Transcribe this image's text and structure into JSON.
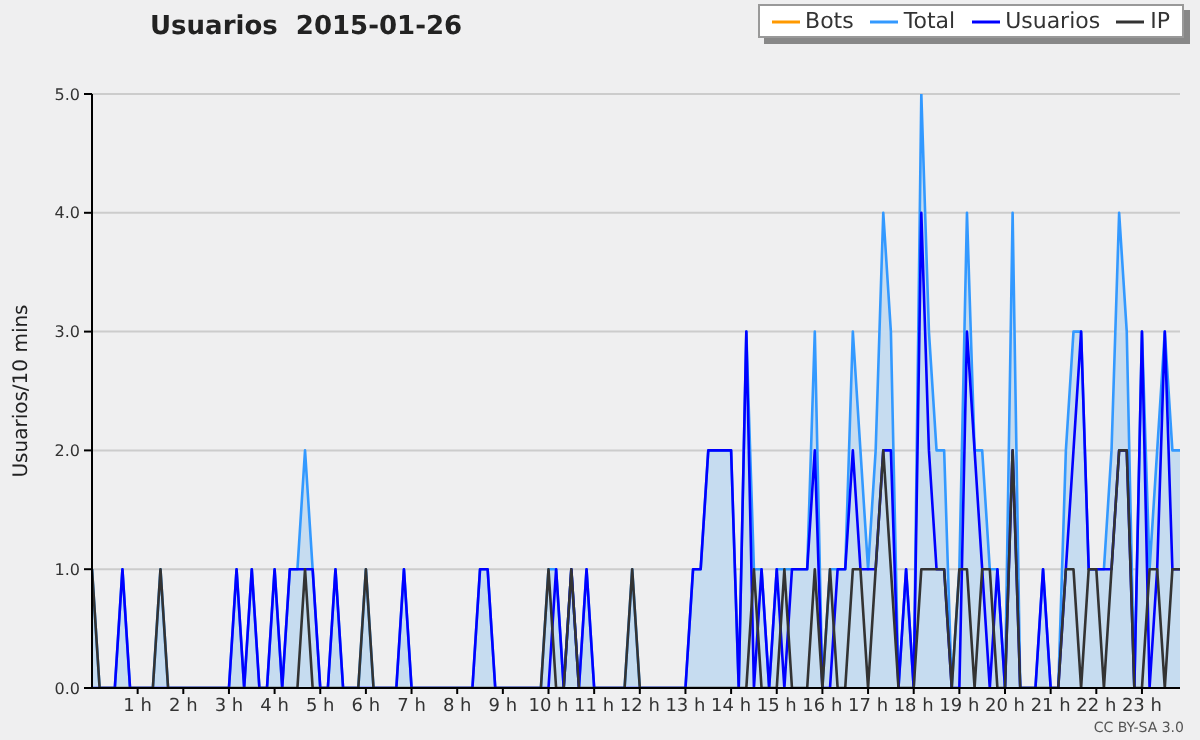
{
  "chart_data": {
    "type": "line",
    "title": "Usuarios  2015-01-26",
    "ylabel": "Usuarios/10 mins",
    "annotations": [
      "CC BY-SA 3.0"
    ],
    "x": [
      "2015-01-26T00:00",
      "2015-01-26T00:10",
      "2015-01-26T00:20",
      "2015-01-26T00:30",
      "2015-01-26T00:40",
      "2015-01-26T00:50",
      "2015-01-26T01:00",
      "2015-01-26T01:10",
      "2015-01-26T01:20",
      "2015-01-26T01:30",
      "2015-01-26T01:40",
      "2015-01-26T01:50",
      "2015-01-26T02:00",
      "2015-01-26T02:10",
      "2015-01-26T02:20",
      "2015-01-26T02:30",
      "2015-01-26T02:40",
      "2015-01-26T02:50",
      "2015-01-26T03:00",
      "2015-01-26T03:10",
      "2015-01-26T03:20",
      "2015-01-26T03:30",
      "2015-01-26T03:40",
      "2015-01-26T03:50",
      "2015-01-26T04:00",
      "2015-01-26T04:10",
      "2015-01-26T04:20",
      "2015-01-26T04:30",
      "2015-01-26T04:40",
      "2015-01-26T04:50",
      "2015-01-26T05:00",
      "2015-01-26T05:10",
      "2015-01-26T05:20",
      "2015-01-26T05:30",
      "2015-01-26T05:40",
      "2015-01-26T05:50",
      "2015-01-26T06:00",
      "2015-01-26T06:10",
      "2015-01-26T06:20",
      "2015-01-26T06:30",
      "2015-01-26T06:40",
      "2015-01-26T06:50",
      "2015-01-26T07:00",
      "2015-01-26T07:10",
      "2015-01-26T07:20",
      "2015-01-26T07:30",
      "2015-01-26T07:40",
      "2015-01-26T07:50",
      "2015-01-26T08:00",
      "2015-01-26T08:10",
      "2015-01-26T08:20",
      "2015-01-26T08:30",
      "2015-01-26T08:40",
      "2015-01-26T08:50",
      "2015-01-26T09:00",
      "2015-01-26T09:10",
      "2015-01-26T09:20",
      "2015-01-26T09:30",
      "2015-01-26T09:40",
      "2015-01-26T09:50",
      "2015-01-26T10:00",
      "2015-01-26T10:10",
      "2015-01-26T10:20",
      "2015-01-26T10:30",
      "2015-01-26T10:40",
      "2015-01-26T10:50",
      "2015-01-26T11:00",
      "2015-01-26T11:10",
      "2015-01-26T11:20",
      "2015-01-26T11:30",
      "2015-01-26T11:40",
      "2015-01-26T11:50",
      "2015-01-26T12:00",
      "2015-01-26T12:10",
      "2015-01-26T12:20",
      "2015-01-26T12:30",
      "2015-01-26T12:40",
      "2015-01-26T12:50",
      "2015-01-26T13:00",
      "2015-01-26T13:10",
      "2015-01-26T13:20",
      "2015-01-26T13:30",
      "2015-01-26T13:40",
      "2015-01-26T13:50",
      "2015-01-26T14:00",
      "2015-01-26T14:10",
      "2015-01-26T14:20",
      "2015-01-26T14:30",
      "2015-01-26T14:40",
      "2015-01-26T14:50",
      "2015-01-26T15:00",
      "2015-01-26T15:10",
      "2015-01-26T15:20",
      "2015-01-26T15:30",
      "2015-01-26T15:40",
      "2015-01-26T15:50",
      "2015-01-26T16:00",
      "2015-01-26T16:10",
      "2015-01-26T16:20",
      "2015-01-26T16:30",
      "2015-01-26T16:40",
      "2015-01-26T16:50",
      "2015-01-26T17:00",
      "2015-01-26T17:10",
      "2015-01-26T17:20",
      "2015-01-26T17:30",
      "2015-01-26T17:40",
      "2015-01-26T17:50",
      "2015-01-26T18:00",
      "2015-01-26T18:10",
      "2015-01-26T18:20",
      "2015-01-26T18:30",
      "2015-01-26T18:40",
      "2015-01-26T18:50",
      "2015-01-26T19:00",
      "2015-01-26T19:10",
      "2015-01-26T19:20",
      "2015-01-26T19:30",
      "2015-01-26T19:40",
      "2015-01-26T19:50",
      "2015-01-26T20:00",
      "2015-01-26T20:10",
      "2015-01-26T20:20",
      "2015-01-26T20:30",
      "2015-01-26T20:40",
      "2015-01-26T20:50",
      "2015-01-26T21:00",
      "2015-01-26T21:10",
      "2015-01-26T21:20",
      "2015-01-26T21:30",
      "2015-01-26T21:40",
      "2015-01-26T21:50",
      "2015-01-26T22:00",
      "2015-01-26T22:10",
      "2015-01-26T22:20",
      "2015-01-26T22:30",
      "2015-01-26T22:40",
      "2015-01-26T22:50",
      "2015-01-26T23:00",
      "2015-01-26T23:10",
      "2015-01-26T23:20",
      "2015-01-26T23:30",
      "2015-01-26T23:40",
      "2015-01-26T23:50"
    ],
    "series": [
      {
        "name": "Bots",
        "color": "#ff9900",
        "values": [
          null,
          null,
          null,
          null,
          null,
          null,
          null,
          null,
          null,
          null,
          null,
          null,
          null,
          null,
          null,
          null,
          null,
          null,
          null,
          null,
          null,
          null,
          null,
          null,
          null,
          null,
          null,
          null,
          null,
          null,
          null,
          null,
          null,
          null,
          null,
          null,
          null,
          null,
          null,
          null,
          null,
          null,
          null,
          null,
          null,
          null,
          null,
          null,
          null,
          null,
          null,
          null,
          null,
          null,
          null,
          null,
          null,
          null,
          null,
          null,
          null,
          null,
          null,
          null,
          null,
          null,
          null,
          null,
          null,
          null,
          null,
          null,
          null,
          null,
          null,
          null,
          null,
          null,
          null,
          null,
          null,
          null,
          null,
          null,
          null,
          null,
          null,
          null,
          null,
          null,
          null,
          null,
          null,
          null,
          null,
          null,
          null,
          null,
          null,
          null,
          null,
          null,
          null,
          null,
          null,
          null,
          null,
          null,
          null,
          null,
          null,
          null,
          null,
          null,
          null,
          null,
          null,
          null,
          null,
          null,
          null,
          null,
          null,
          null,
          null,
          null,
          null,
          null,
          null,
          null,
          null,
          null,
          null,
          null,
          null,
          null,
          null,
          null,
          null,
          null,
          null,
          null,
          null,
          null
        ]
      },
      {
        "name": "Total",
        "type": "area",
        "color": "#3399ff",
        "values": [
          1,
          0,
          0,
          0,
          1,
          0,
          0,
          0,
          0,
          1,
          0,
          0,
          0,
          0,
          0,
          0,
          0,
          0,
          0,
          1,
          0,
          1,
          0,
          0,
          1,
          0,
          1,
          1,
          2,
          1,
          0,
          0,
          1,
          0,
          0,
          0,
          1,
          0,
          0,
          0,
          0,
          1,
          0,
          0,
          0,
          0,
          0,
          0,
          0,
          0,
          0,
          1,
          1,
          0,
          0,
          0,
          0,
          0,
          0,
          0,
          1,
          1,
          0,
          1,
          0,
          1,
          0,
          0,
          0,
          0,
          0,
          1,
          0,
          0,
          0,
          0,
          0,
          0,
          0,
          1,
          1,
          2,
          2,
          2,
          2,
          0,
          3,
          1,
          1,
          0,
          1,
          1,
          1,
          1,
          1,
          3,
          0,
          1,
          1,
          1,
          3,
          2,
          1,
          2,
          4,
          3,
          0,
          1,
          0,
          5,
          3,
          2,
          2,
          0,
          1,
          4,
          2,
          2,
          1,
          1,
          0,
          4,
          0,
          0,
          0,
          1,
          0,
          0,
          2,
          3,
          3,
          1,
          1,
          1,
          2,
          4,
          3,
          0,
          3,
          1,
          2,
          3,
          2,
          2
        ]
      },
      {
        "name": "Usuarios",
        "color": "#0000ff",
        "values": [
          0,
          0,
          0,
          0,
          1,
          0,
          0,
          0,
          0,
          0,
          0,
          0,
          0,
          0,
          0,
          0,
          0,
          0,
          0,
          1,
          0,
          1,
          0,
          0,
          1,
          0,
          1,
          1,
          1,
          1,
          0,
          0,
          1,
          0,
          0,
          0,
          0,
          0,
          0,
          0,
          0,
          1,
          0,
          0,
          0,
          0,
          0,
          0,
          0,
          0,
          0,
          1,
          1,
          0,
          0,
          0,
          0,
          0,
          0,
          0,
          0,
          1,
          0,
          1,
          0,
          1,
          0,
          0,
          0,
          0,
          0,
          0,
          0,
          0,
          0,
          0,
          0,
          0,
          0,
          1,
          1,
          2,
          2,
          2,
          2,
          0,
          3,
          0,
          1,
          0,
          1,
          0,
          1,
          1,
          1,
          2,
          0,
          0,
          1,
          1,
          2,
          1,
          1,
          1,
          2,
          2,
          0,
          1,
          0,
          4,
          2,
          1,
          1,
          0,
          0,
          3,
          2,
          1,
          0,
          1,
          0,
          2,
          0,
          0,
          0,
          1,
          0,
          0,
          1,
          2,
          3,
          1,
          1,
          1,
          1,
          2,
          2,
          0,
          3,
          0,
          1,
          3,
          1,
          1
        ]
      },
      {
        "name": "IP",
        "color": "#333333",
        "values": [
          1,
          0,
          0,
          0,
          0,
          0,
          0,
          0,
          0,
          1,
          0,
          0,
          0,
          0,
          0,
          0,
          0,
          0,
          0,
          0,
          0,
          0,
          0,
          0,
          0,
          0,
          0,
          0,
          1,
          0,
          0,
          0,
          0,
          0,
          0,
          0,
          1,
          0,
          0,
          0,
          0,
          0,
          0,
          0,
          0,
          0,
          0,
          0,
          0,
          0,
          0,
          0,
          0,
          0,
          0,
          0,
          0,
          0,
          0,
          0,
          1,
          0,
          0,
          1,
          0,
          0,
          0,
          0,
          0,
          0,
          0,
          1,
          0,
          0,
          0,
          0,
          0,
          0,
          0,
          0,
          0,
          0,
          0,
          0,
          0,
          0,
          0,
          1,
          0,
          0,
          0,
          1,
          0,
          0,
          0,
          1,
          0,
          1,
          0,
          0,
          1,
          1,
          0,
          1,
          2,
          1,
          0,
          0,
          0,
          1,
          1,
          1,
          1,
          0,
          1,
          1,
          0,
          1,
          1,
          0,
          0,
          2,
          0,
          0,
          0,
          0,
          0,
          0,
          1,
          1,
          0,
          1,
          1,
          0,
          1,
          2,
          2,
          0,
          0,
          1,
          1,
          0,
          1,
          1
        ]
      }
    ],
    "xlim": [
      "2015-01-26T00:00",
      "2015-01-26T23:50"
    ],
    "xticks": [
      {
        "value": "2015-01-26T01:00",
        "label": "1 h"
      },
      {
        "value": "2015-01-26T02:00",
        "label": "2 h"
      },
      {
        "value": "2015-01-26T03:00",
        "label": "3 h"
      },
      {
        "value": "2015-01-26T04:00",
        "label": "4 h"
      },
      {
        "value": "2015-01-26T05:00",
        "label": "5 h"
      },
      {
        "value": "2015-01-26T06:00",
        "label": "6 h"
      },
      {
        "value": "2015-01-26T07:00",
        "label": "7 h"
      },
      {
        "value": "2015-01-26T08:00",
        "label": "8 h"
      },
      {
        "value": "2015-01-26T09:00",
        "label": "9 h"
      },
      {
        "value": "2015-01-26T10:00",
        "label": "10 h"
      },
      {
        "value": "2015-01-26T11:00",
        "label": "11 h"
      },
      {
        "value": "2015-01-26T12:00",
        "label": "12 h"
      },
      {
        "value": "2015-01-26T13:00",
        "label": "13 h"
      },
      {
        "value": "2015-01-26T14:00",
        "label": "14 h"
      },
      {
        "value": "2015-01-26T15:00",
        "label": "15 h"
      },
      {
        "value": "2015-01-26T16:00",
        "label": "16 h"
      },
      {
        "value": "2015-01-26T17:00",
        "label": "17 h"
      },
      {
        "value": "2015-01-26T18:00",
        "label": "18 h"
      },
      {
        "value": "2015-01-26T19:00",
        "label": "19 h"
      },
      {
        "value": "2015-01-26T20:00",
        "label": "20 h"
      },
      {
        "value": "2015-01-26T21:00",
        "label": "21 h"
      },
      {
        "value": "2015-01-26T22:00",
        "label": "22 h"
      },
      {
        "value": "2015-01-26T23:00",
        "label": "23 h"
      }
    ],
    "ylim": [
      0,
      5
    ],
    "yticks": [
      {
        "value": 0,
        "label": "0.0"
      },
      {
        "value": 1,
        "label": "1.0"
      },
      {
        "value": 2,
        "label": "2.0"
      },
      {
        "value": 3,
        "label": "3.0"
      },
      {
        "value": 4,
        "label": "4.0"
      },
      {
        "value": 5,
        "label": "5.0"
      }
    ],
    "grid": "y",
    "legend": "top right",
    "line_style": "solid"
  }
}
